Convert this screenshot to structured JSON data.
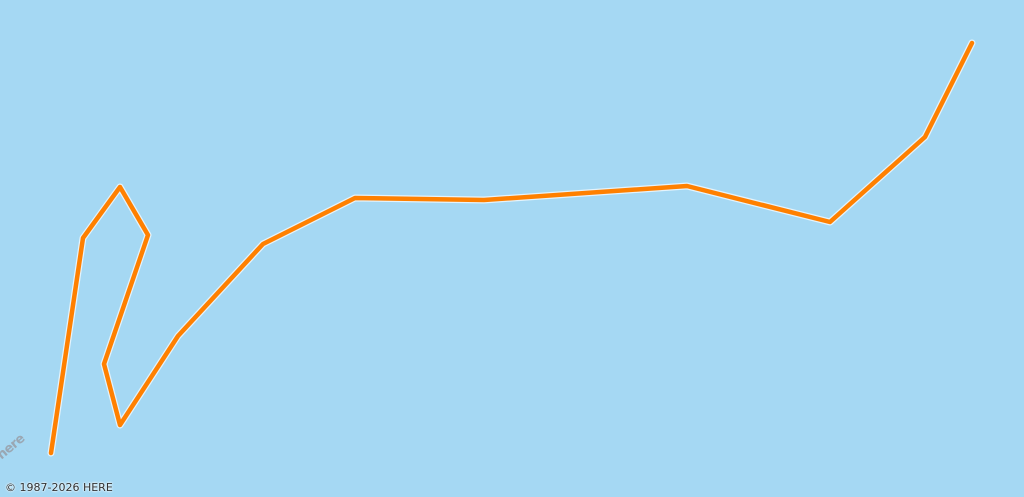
{
  "map": {
    "logo_text": "here",
    "copyright": "© 1987-2026 HERE",
    "colors": {
      "water": "#a5d8f3",
      "route": "#ff8000",
      "route_outline": "#ffffff"
    }
  }
}
